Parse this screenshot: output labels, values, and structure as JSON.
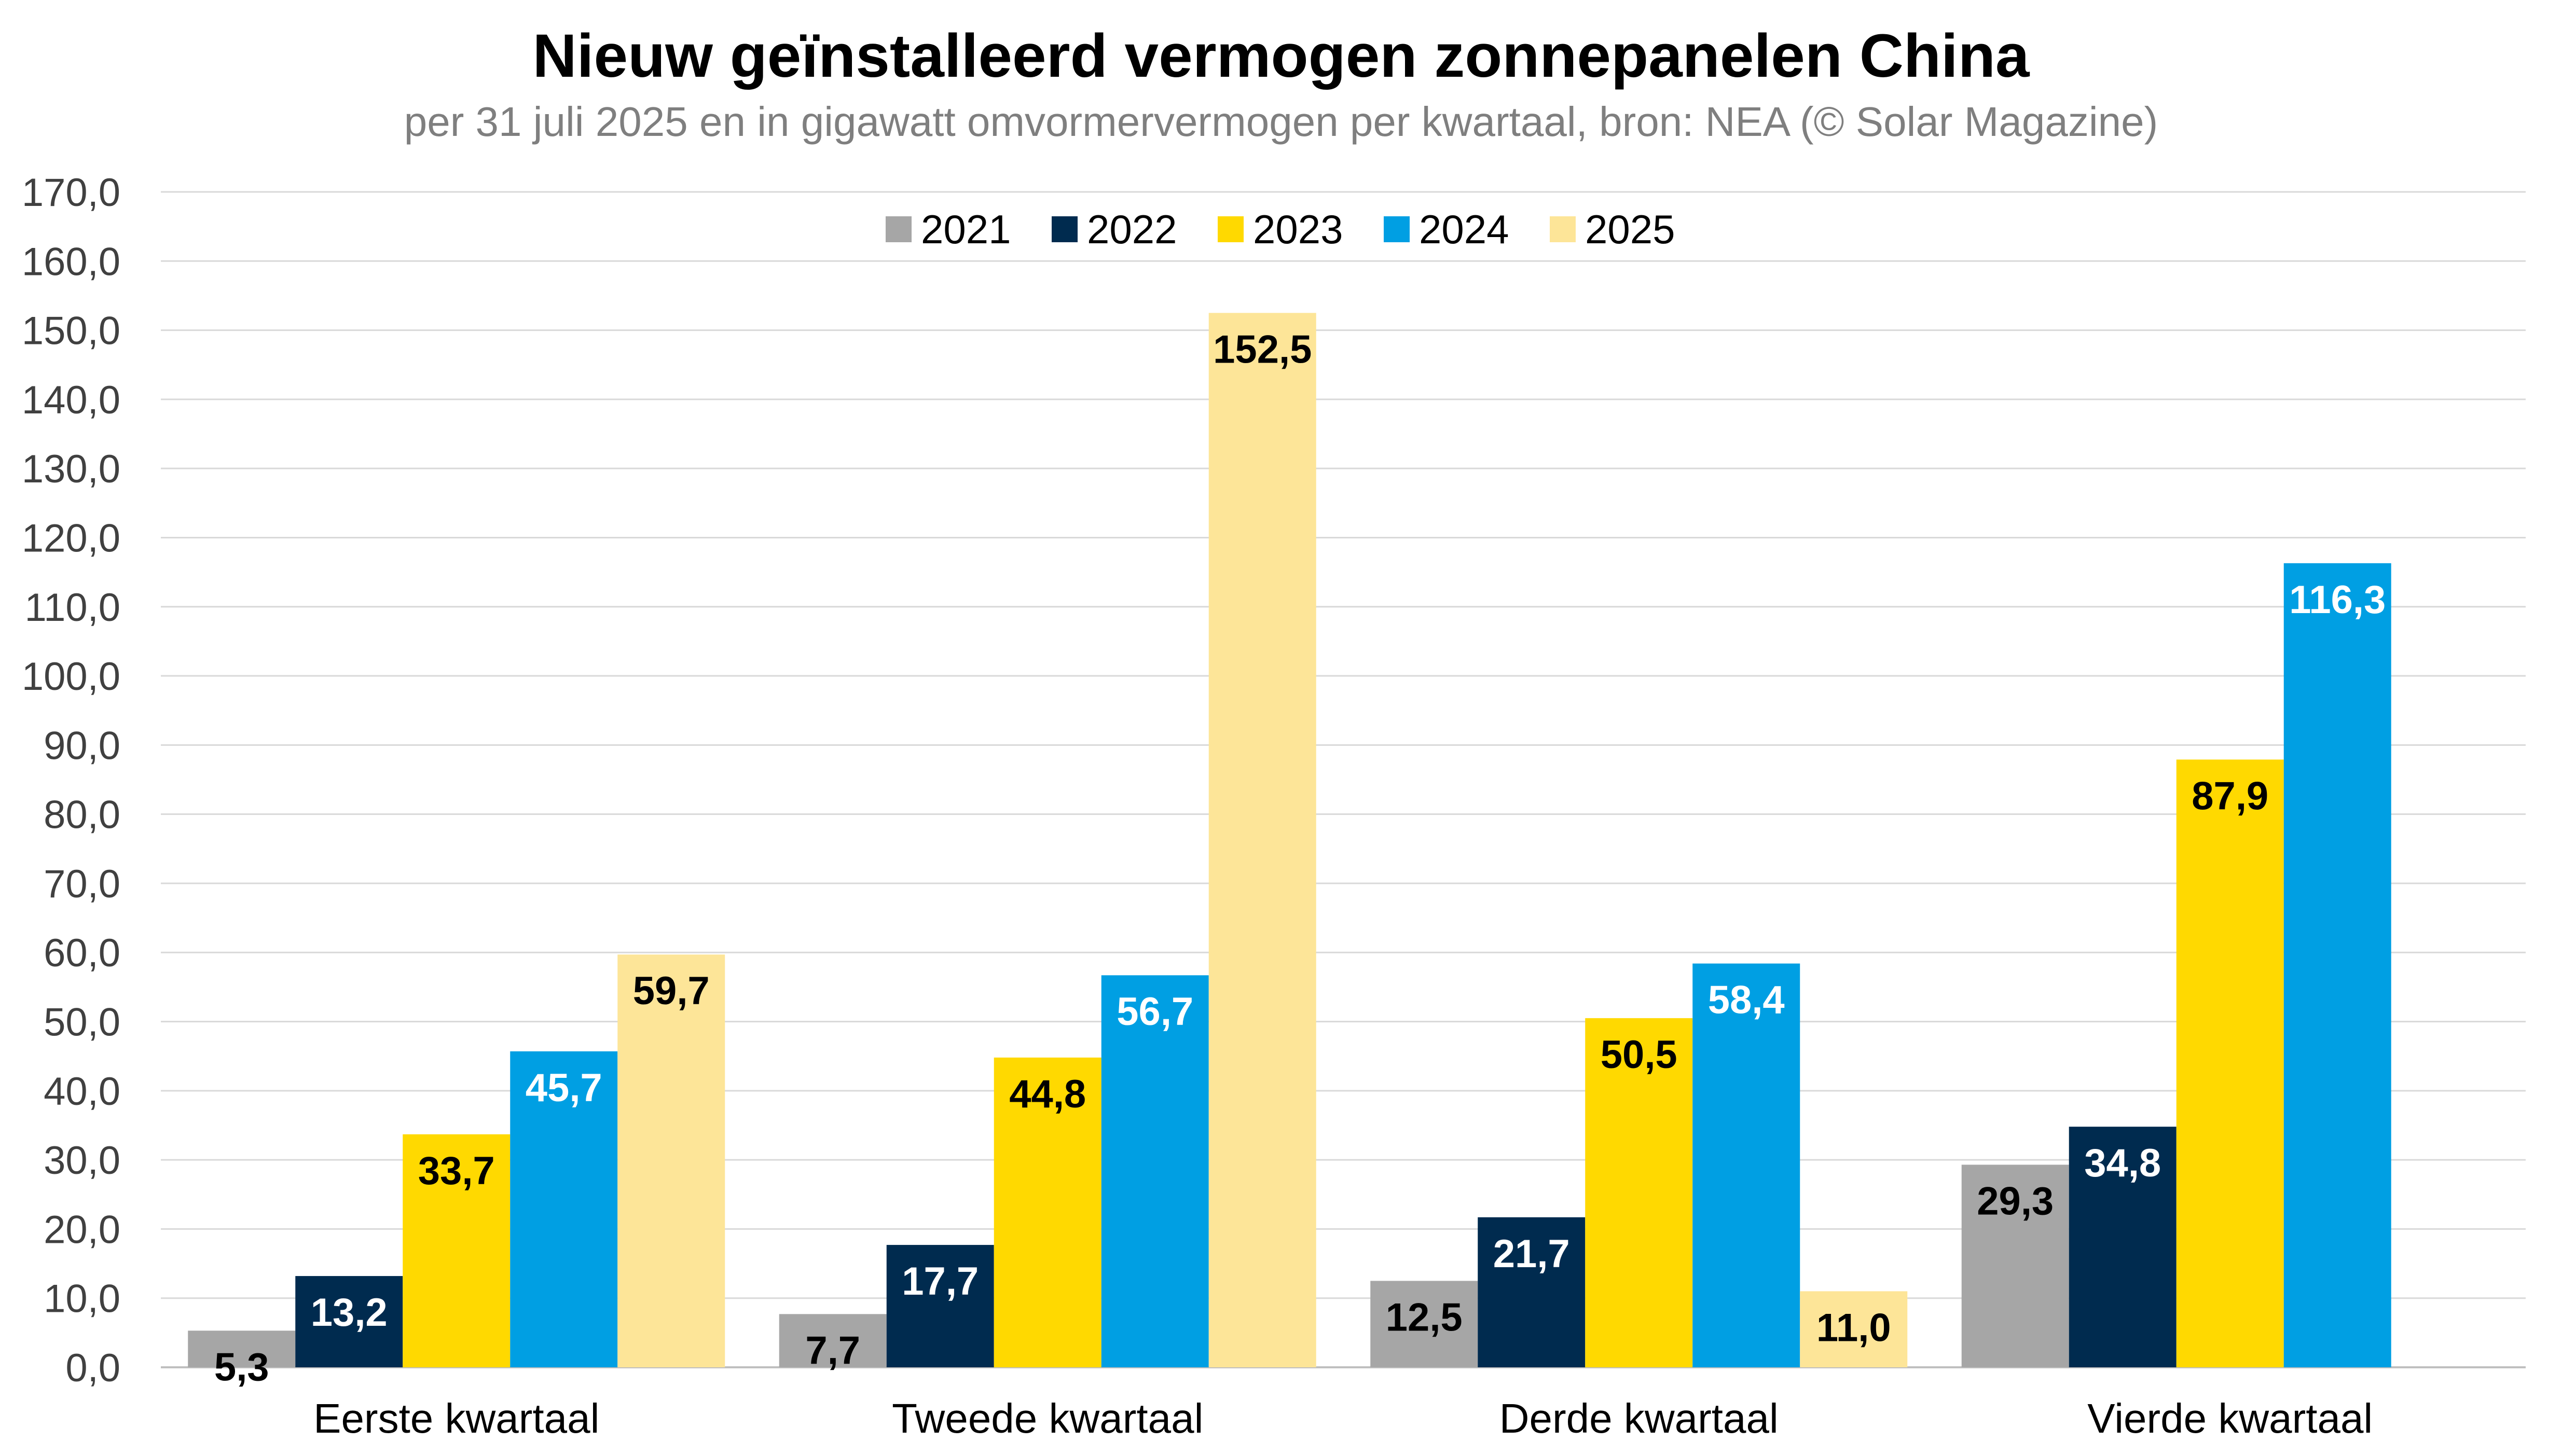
{
  "chart_data": {
    "type": "bar",
    "title": "Nieuw geïnstalleerd vermogen zonnepanelen China",
    "subtitle": "per 31 juli 2025 en in gigawatt omvormervermogen per kwartaal, bron: NEA (© Solar Magazine)",
    "categories": [
      "Eerste kwartaal",
      "Tweede kwartaal",
      "Derde kwartaal",
      "Vierde kwartaal"
    ],
    "series": [
      {
        "name": "2021",
        "color": "#a6a6a6",
        "label_color": "#000000",
        "values": [
          5.3,
          7.7,
          12.5,
          29.3
        ],
        "labels": [
          "5,3",
          "7,7",
          "12,5",
          "29,3"
        ]
      },
      {
        "name": "2022",
        "color": "#002b4f",
        "label_color": "#ffffff",
        "values": [
          13.2,
          17.7,
          21.7,
          34.8
        ],
        "labels": [
          "13,2",
          "17,7",
          "21,7",
          "34,8"
        ]
      },
      {
        "name": "2023",
        "color": "#ffd900",
        "label_color": "#000000",
        "values": [
          33.7,
          44.8,
          50.5,
          87.9
        ],
        "labels": [
          "33,7",
          "44,8",
          "50,5",
          "87,9"
        ]
      },
      {
        "name": "2024",
        "color": "#009fe3",
        "label_color": "#ffffff",
        "values": [
          45.7,
          56.7,
          58.4,
          116.3
        ],
        "labels": [
          "45,7",
          "56,7",
          "58,4",
          "116,3"
        ]
      },
      {
        "name": "2025",
        "color": "#fde598",
        "label_color": "#000000",
        "values": [
          59.7,
          152.5,
          11.0,
          null
        ],
        "labels": [
          "59,7",
          "152,5",
          "11,0",
          null
        ]
      }
    ],
    "ylim": [
      0,
      170
    ],
    "yticks": [
      "0,0",
      "10,0",
      "20,0",
      "30,0",
      "40,0",
      "50,0",
      "60,0",
      "70,0",
      "80,0",
      "90,0",
      "100,0",
      "110,0",
      "120,0",
      "130,0",
      "140,0",
      "150,0",
      "160,0",
      "170,0"
    ],
    "ytick_values": [
      0,
      10,
      20,
      30,
      40,
      50,
      60,
      70,
      80,
      90,
      100,
      110,
      120,
      130,
      140,
      150,
      160,
      170
    ],
    "xlabel": "",
    "ylabel": "",
    "grid": true,
    "legend_position": "top-center"
  }
}
